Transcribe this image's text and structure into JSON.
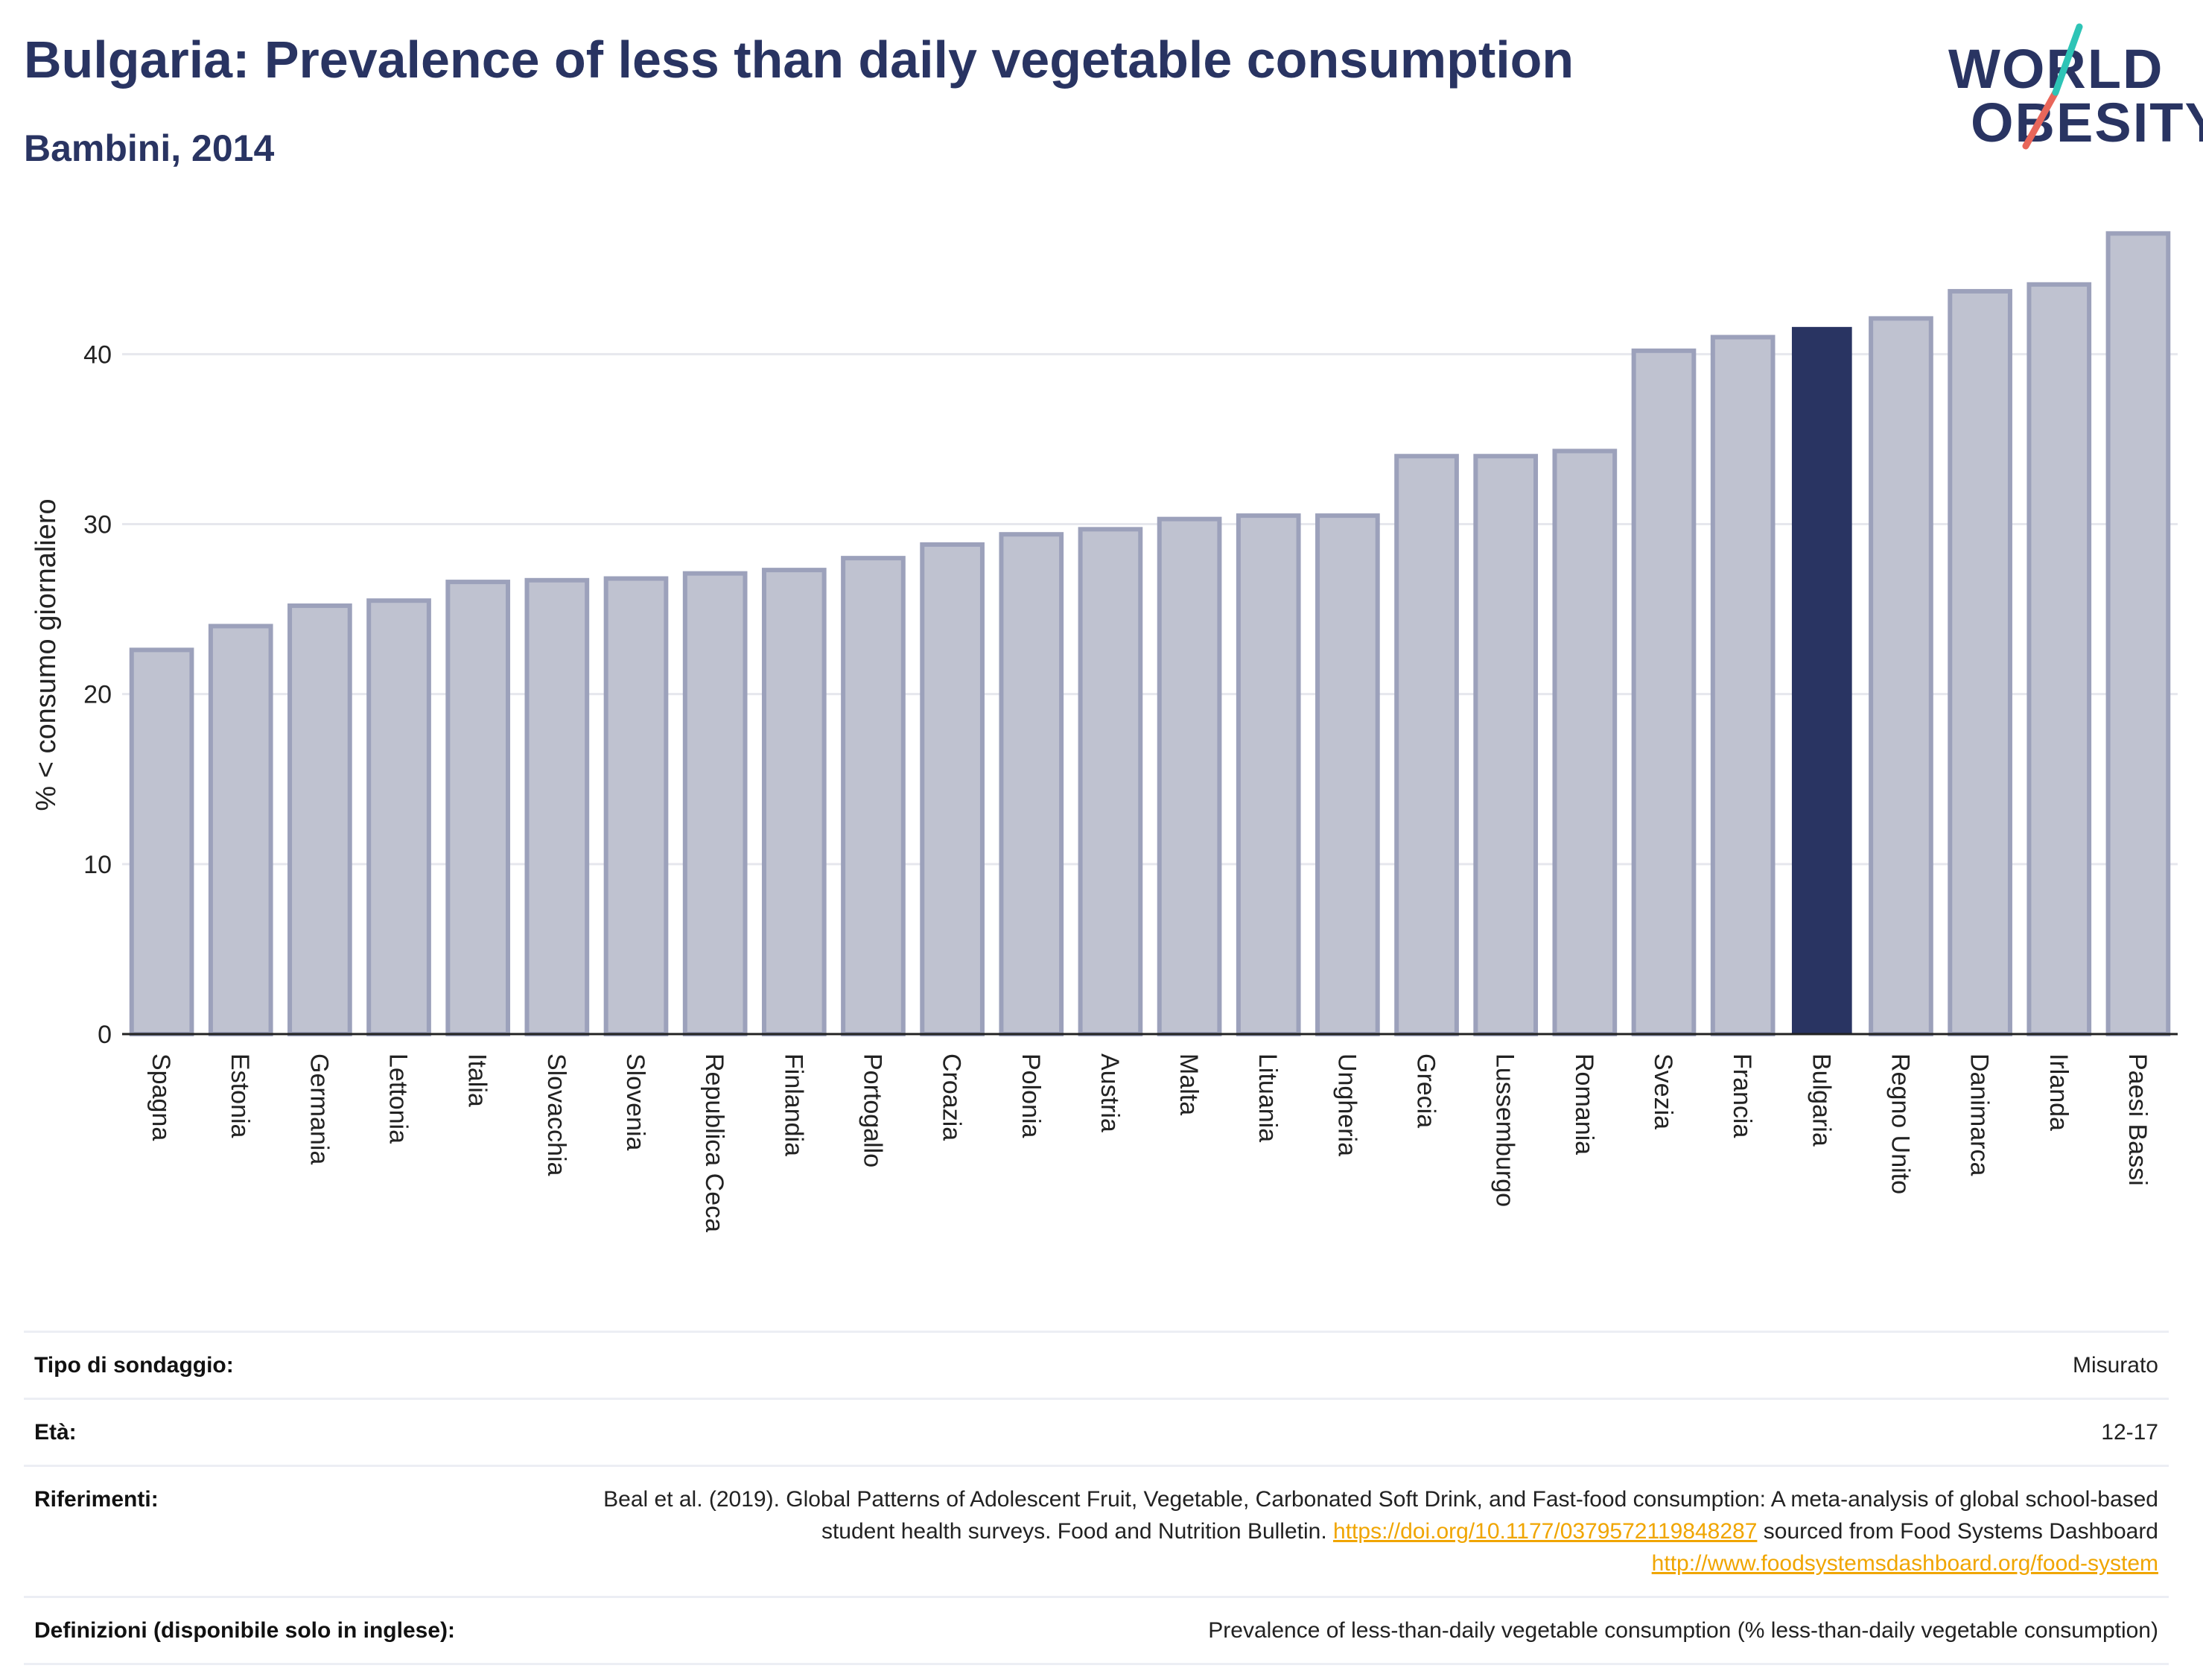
{
  "header": {
    "title": "Bulgaria: Prevalence of less than daily vegetable consumption",
    "subtitle": "Bambini, 2014"
  },
  "logo": {
    "line1": "WORLD",
    "line2": "OBESITY",
    "accent_teal": "#2ec4b6",
    "accent_red": "#e8665a"
  },
  "colors": {
    "bar": "#bfc2d0",
    "bar_border": "#9ca1bb",
    "highlight": "#293462",
    "grid": "#e6e7ed"
  },
  "chart_data": {
    "type": "bar",
    "ylabel": "% < consumo giornaliero",
    "xlabel": "",
    "ylim": [
      0,
      49
    ],
    "yticks": [
      0,
      10,
      20,
      30,
      40
    ],
    "grid": true,
    "highlight": "Bulgaria",
    "categories": [
      "Spagna",
      "Estonia",
      "Germania",
      "Lettonia",
      "Italia",
      "Slovacchia",
      "Slovenia",
      "Republica Ceca",
      "Finlandia",
      "Portogallo",
      "Croazia",
      "Polonia",
      "Austria",
      "Malta",
      "Lituania",
      "Ungheria",
      "Grecia",
      "Lussemburgo",
      "Romania",
      "Svezia",
      "Francia",
      "Bulgaria",
      "Regno Unito",
      "Danimarca",
      "Irlanda",
      "Paesi Bassi"
    ],
    "values": [
      22.6,
      24.0,
      25.2,
      25.5,
      26.6,
      26.7,
      26.8,
      27.1,
      27.3,
      28.0,
      28.8,
      29.4,
      29.7,
      30.3,
      30.5,
      30.5,
      34.0,
      34.0,
      34.3,
      40.2,
      41.0,
      41.6,
      42.1,
      43.7,
      44.1,
      47.1
    ]
  },
  "info": {
    "survey_label": "Tipo di sondaggio:",
    "survey_value": "Misurato",
    "age_label": "Età:",
    "age_value": "12-17",
    "ref_label": "Riferimenti:",
    "ref_text": "Beal et al. (2019). Global Patterns of Adolescent Fruit, Vegetable, Carbonated Soft Drink, and Fast-food consumption: A meta-analysis of global school-based student health surveys. Food and Nutrition Bulletin.",
    "ref_link1": "https://doi.org/10.1177/0379572119848287",
    "ref_mid": "sourced from Food Systems Dashboard",
    "ref_link2": "http://www.foodsystemsdashboard.org/food-system",
    "def_label": "Definizioni (disponibile solo in inglese):",
    "def_value": "Prevalence of less-than-daily vegetable consumption (% less-than-daily vegetable consumption)"
  }
}
